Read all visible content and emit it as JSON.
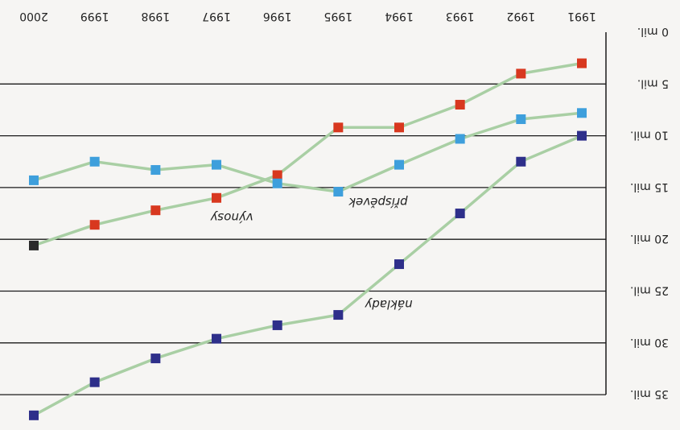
{
  "chart_data": {
    "type": "line",
    "orientation": "rotated-180",
    "title": "",
    "xlabel": "",
    "ylabel": "",
    "x": [
      "1991",
      "1992",
      "1993",
      "1994",
      "1995",
      "1996",
      "1997",
      "1998",
      "1999",
      "2000"
    ],
    "y_ticks": [
      "0 mil.",
      "5 mil.",
      "10 mil.",
      "15 mil.",
      "20 mil.",
      "25 mil.",
      "30 mil.",
      "35 mil."
    ],
    "ylim": [
      0,
      35
    ],
    "grid": true,
    "series": [
      {
        "name": "výnosy",
        "color": "#d8381f",
        "line_color": "#a9cfa4",
        "values": [
          3,
          4,
          7,
          9.2,
          9.2,
          13.8,
          16,
          17.2,
          18.6,
          20.6
        ],
        "point_colors": [
          "#d8381f",
          "#d8381f",
          "#d8381f",
          "#d8381f",
          "#d8381f",
          "#d8381f",
          "#d8381f",
          "#d8381f",
          "#d8381f",
          "#2a2a2a"
        ]
      },
      {
        "name": "příspěvek",
        "color": "#3e9fdc",
        "line_color": "#a9cfa4",
        "values": [
          7.8,
          8.4,
          10.3,
          12.8,
          15.4,
          14.6,
          12.8,
          13.3,
          12.5,
          14.3
        ]
      },
      {
        "name": "náklady",
        "color": "#2e2f8a",
        "line_color": "#a9cfa4",
        "values": [
          10,
          12.5,
          17.5,
          22.4,
          27.3,
          28.3,
          29.6,
          31.5,
          33.8,
          37
        ]
      }
    ]
  }
}
